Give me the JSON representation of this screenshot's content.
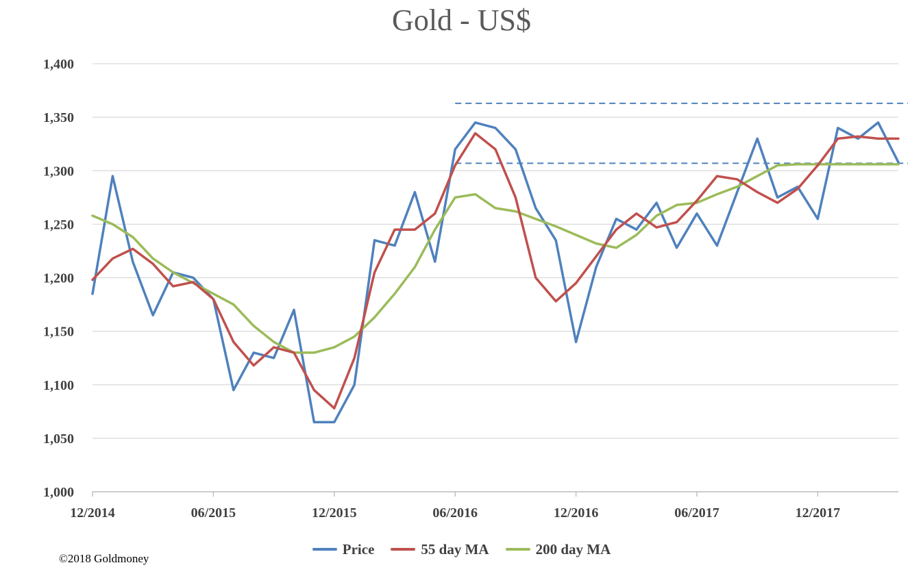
{
  "chart_data": {
    "type": "line",
    "title": "Gold - US$",
    "xlabel": "",
    "ylabel": "",
    "ylim": [
      1000,
      1400
    ],
    "yticks": [
      1000,
      1050,
      1100,
      1150,
      1200,
      1250,
      1300,
      1350,
      1400
    ],
    "ytick_labels": [
      "1,000",
      "1,050",
      "1,100",
      "1,150",
      "1,200",
      "1,250",
      "1,300",
      "1,350",
      "1,400"
    ],
    "xlim": [
      "2014-12",
      "2018-04"
    ],
    "xticks": [
      "2014-12",
      "2015-06",
      "2015-12",
      "2016-06",
      "2016-12",
      "2017-06",
      "2017-12"
    ],
    "xtick_labels": [
      "12/2014",
      "06/2015",
      "12/2015",
      "06/2016",
      "12/2016",
      "06/2017",
      "12/2017"
    ],
    "grid": "horizontal",
    "legend_position": "bottom",
    "series": [
      {
        "name": "Price",
        "color": "#4f81bd",
        "x": [
          "2014-12",
          "2015-01",
          "2015-02",
          "2015-03",
          "2015-04",
          "2015-05",
          "2015-06",
          "2015-07",
          "2015-08",
          "2015-09",
          "2015-10",
          "2015-11",
          "2015-12",
          "2016-01",
          "2016-02",
          "2016-03",
          "2016-04",
          "2016-05",
          "2016-06",
          "2016-07",
          "2016-08",
          "2016-09",
          "2016-10",
          "2016-11",
          "2016-12",
          "2017-01",
          "2017-02",
          "2017-03",
          "2017-04",
          "2017-05",
          "2017-06",
          "2017-07",
          "2017-08",
          "2017-09",
          "2017-10",
          "2017-11",
          "2017-12",
          "2018-01",
          "2018-02",
          "2018-03",
          "2018-04"
        ],
        "values": [
          1185,
          1295,
          1215,
          1165,
          1205,
          1200,
          1180,
          1095,
          1130,
          1125,
          1170,
          1065,
          1065,
          1100,
          1235,
          1230,
          1280,
          1215,
          1320,
          1345,
          1340,
          1320,
          1265,
          1235,
          1140,
          1210,
          1255,
          1245,
          1270,
          1228,
          1260,
          1230,
          1280,
          1330,
          1275,
          1285,
          1255,
          1340,
          1330,
          1345,
          1308
        ]
      },
      {
        "name": "55 day MA",
        "color": "#c0504d",
        "x": [
          "2014-12",
          "2015-01",
          "2015-02",
          "2015-03",
          "2015-04",
          "2015-05",
          "2015-06",
          "2015-07",
          "2015-08",
          "2015-09",
          "2015-10",
          "2015-11",
          "2015-12",
          "2016-01",
          "2016-02",
          "2016-03",
          "2016-04",
          "2016-05",
          "2016-06",
          "2016-07",
          "2016-08",
          "2016-09",
          "2016-10",
          "2016-11",
          "2016-12",
          "2017-01",
          "2017-02",
          "2017-03",
          "2017-04",
          "2017-05",
          "2017-06",
          "2017-07",
          "2017-08",
          "2017-09",
          "2017-10",
          "2017-11",
          "2017-12",
          "2018-01",
          "2018-02",
          "2018-03",
          "2018-04"
        ],
        "values": [
          1198,
          1218,
          1227,
          1213,
          1192,
          1196,
          1180,
          1140,
          1118,
          1135,
          1130,
          1095,
          1078,
          1125,
          1205,
          1245,
          1245,
          1260,
          1305,
          1335,
          1320,
          1275,
          1200,
          1178,
          1195,
          1220,
          1245,
          1260,
          1247,
          1252,
          1272,
          1295,
          1292,
          1280,
          1270,
          1283,
          1305,
          1330,
          1332,
          1330,
          1330
        ]
      },
      {
        "name": "200 day MA",
        "color": "#9bbb59",
        "x": [
          "2014-12",
          "2015-01",
          "2015-02",
          "2015-03",
          "2015-04",
          "2015-05",
          "2015-06",
          "2015-07",
          "2015-08",
          "2015-09",
          "2015-10",
          "2015-11",
          "2015-12",
          "2016-01",
          "2016-02",
          "2016-03",
          "2016-04",
          "2016-05",
          "2016-06",
          "2016-07",
          "2016-08",
          "2016-09",
          "2016-10",
          "2016-11",
          "2016-12",
          "2017-01",
          "2017-02",
          "2017-03",
          "2017-04",
          "2017-05",
          "2017-06",
          "2017-07",
          "2017-08",
          "2017-09",
          "2017-10",
          "2017-11",
          "2017-12",
          "2018-01",
          "2018-02",
          "2018-03",
          "2018-04"
        ],
        "values": [
          1258,
          1250,
          1238,
          1218,
          1205,
          1195,
          1185,
          1175,
          1155,
          1140,
          1130,
          1130,
          1135,
          1145,
          1163,
          1185,
          1210,
          1245,
          1275,
          1278,
          1265,
          1262,
          1255,
          1248,
          1240,
          1232,
          1228,
          1240,
          1258,
          1268,
          1270,
          1278,
          1285,
          1295,
          1305,
          1306,
          1306,
          1306,
          1306,
          1306,
          1306
        ]
      }
    ],
    "annotations": [
      {
        "type": "hline",
        "style": "dashed",
        "color": "#4f81bd",
        "value": 1363,
        "from": "2016-06",
        "to": "2018-04"
      },
      {
        "type": "hline",
        "style": "dashed",
        "color": "#4f81bd",
        "value": 1307,
        "from": "2016-06",
        "to": "2018-04"
      }
    ]
  },
  "credit": "©2018 Goldmoney"
}
